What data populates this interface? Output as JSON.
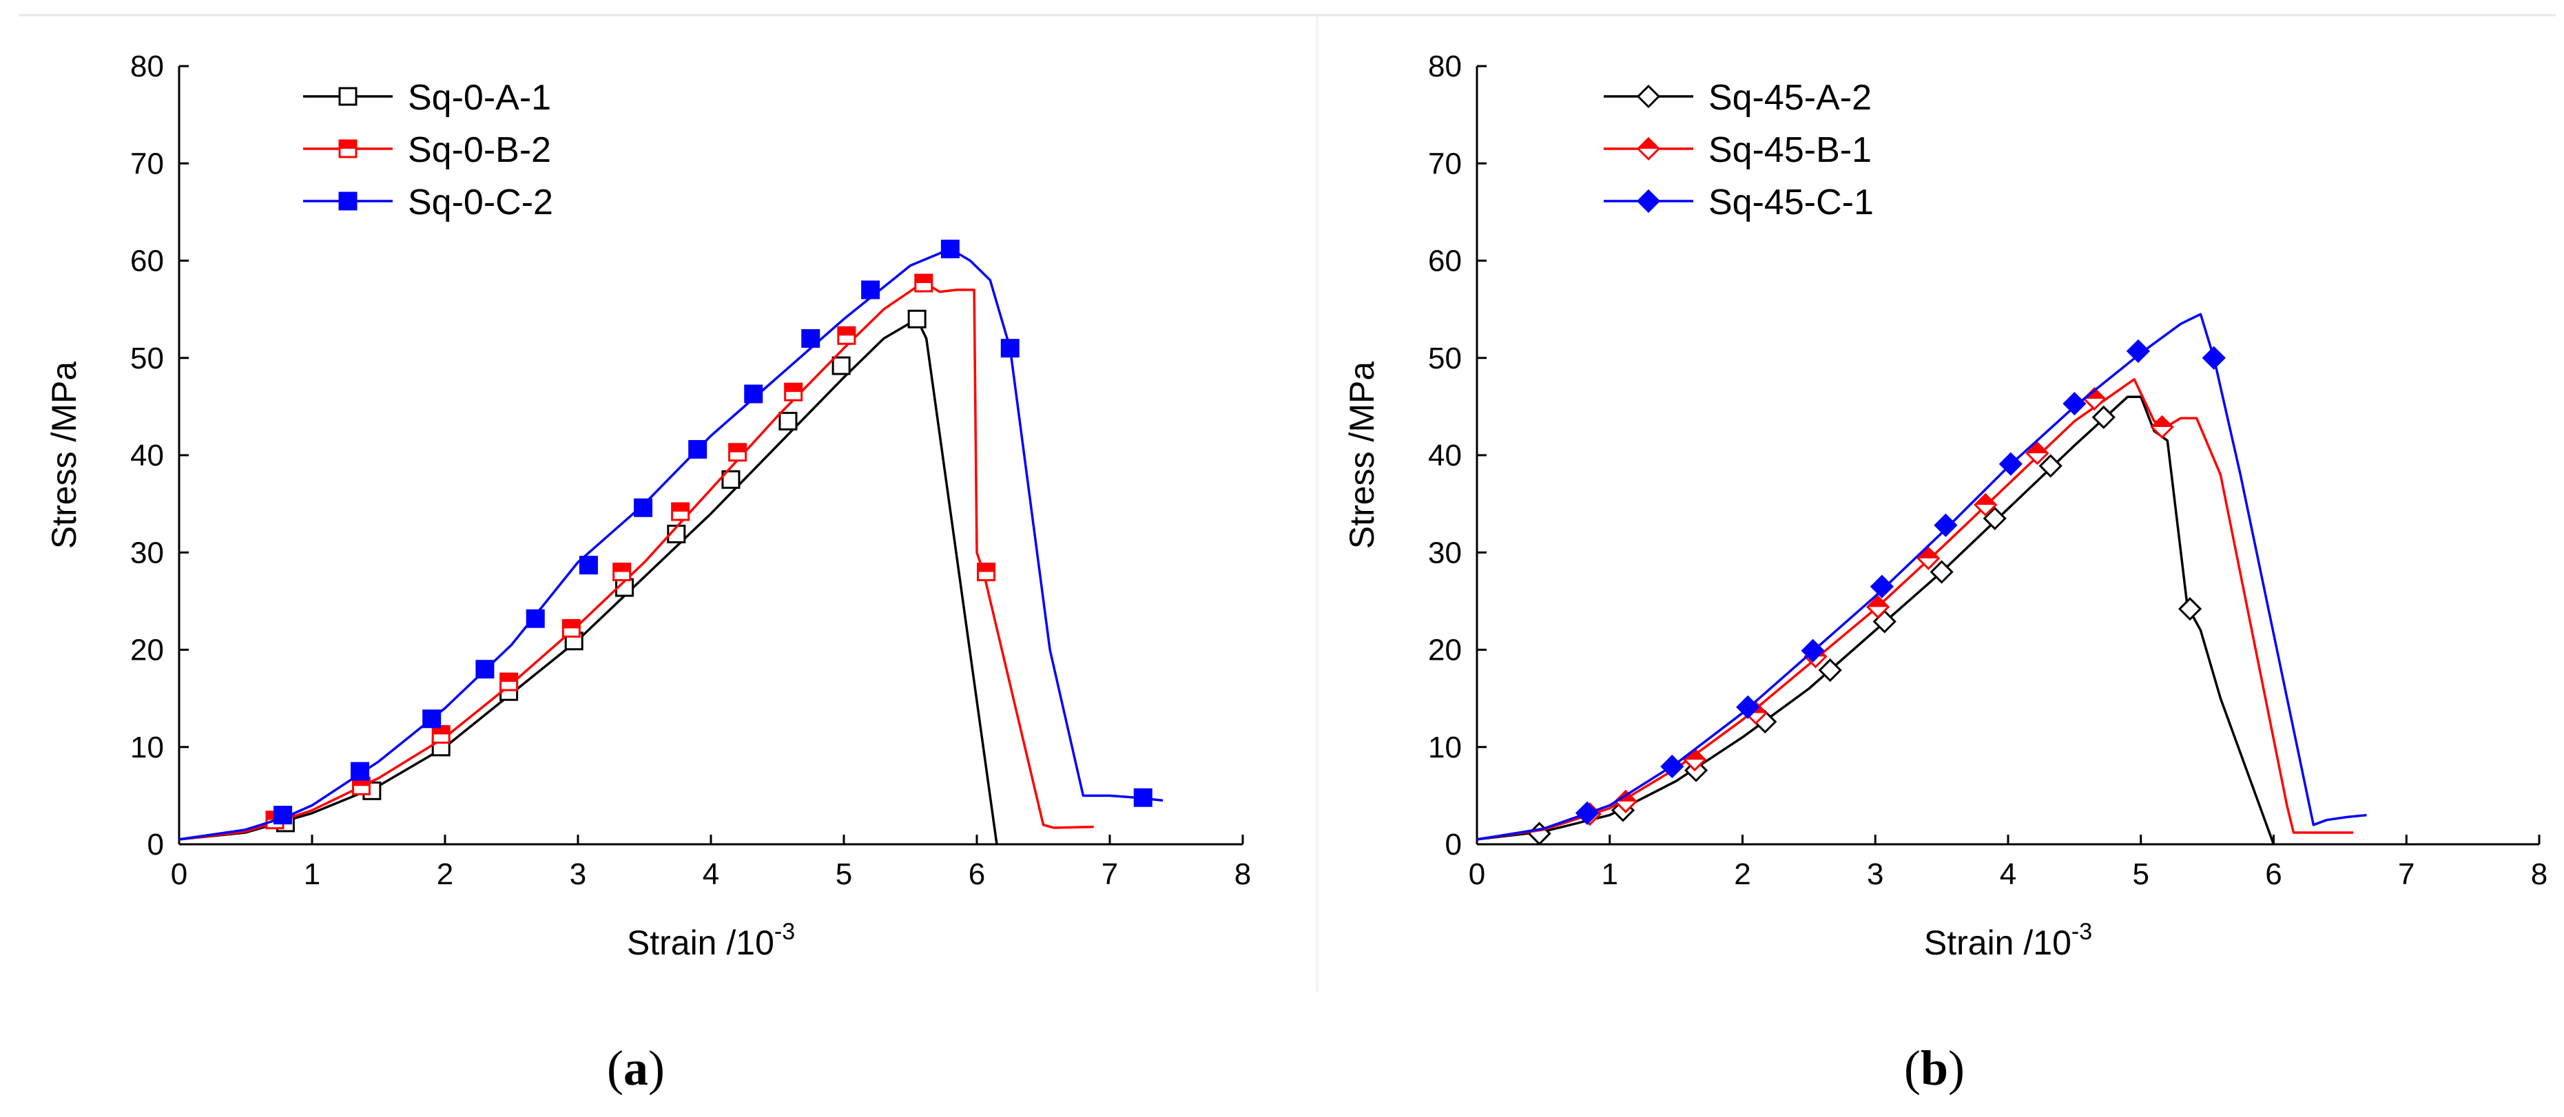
{
  "chart_data": [
    {
      "type": "line",
      "panel_label": "(a)",
      "panel_letter": "a",
      "xlabel_base": "Strain /10",
      "xlabel_exp": "-3",
      "ylabel": "Stress /MPa",
      "xlim": [
        0,
        8
      ],
      "ylim": [
        0,
        80
      ],
      "xticks": [
        0,
        1,
        2,
        3,
        4,
        5,
        6,
        7,
        8
      ],
      "yticks": [
        0,
        10,
        20,
        30,
        40,
        50,
        60,
        70,
        80
      ],
      "legend_position": "top-left",
      "series": [
        {
          "name": "Sq-0-A-1",
          "color": "#000000",
          "marker": "square",
          "marker_fill": "open",
          "points": [
            [
              0,
              0.5
            ],
            [
              0.5,
              1.2
            ],
            [
              1.0,
              3.2
            ],
            [
              1.5,
              6.0
            ],
            [
              2.0,
              10.0
            ],
            [
              2.5,
              15.5
            ],
            [
              3.0,
              21.0
            ],
            [
              3.5,
              27.5
            ],
            [
              4.0,
              34.0
            ],
            [
              4.5,
              41.0
            ],
            [
              5.0,
              48.0
            ],
            [
              5.3,
              52.0
            ],
            [
              5.55,
              54.0
            ],
            [
              5.62,
              52.0
            ],
            [
              6.15,
              0.0
            ]
          ],
          "markers": [
            [
              0.8,
              2.2
            ],
            [
              1.45,
              5.5
            ],
            [
              1.97,
              10.0
            ],
            [
              2.48,
              15.7
            ],
            [
              2.97,
              20.9
            ],
            [
              3.35,
              26.4
            ],
            [
              3.74,
              31.9
            ],
            [
              4.15,
              37.5
            ],
            [
              4.58,
              43.5
            ],
            [
              4.98,
              49.2
            ],
            [
              5.55,
              54.0
            ]
          ]
        },
        {
          "name": "Sq-0-B-2",
          "color": "#ff0000",
          "marker": "square",
          "marker_fill": "half",
          "points": [
            [
              0,
              0.5
            ],
            [
              0.5,
              1.3
            ],
            [
              0.8,
              2.6
            ],
            [
              1.0,
              3.5
            ],
            [
              1.5,
              6.8
            ],
            [
              2.0,
              11.0
            ],
            [
              2.5,
              16.5
            ],
            [
              3.0,
              22.5
            ],
            [
              3.5,
              29.0
            ],
            [
              4.0,
              36.5
            ],
            [
              4.5,
              44.0
            ],
            [
              5.0,
              51.0
            ],
            [
              5.3,
              55.0
            ],
            [
              5.6,
              57.8
            ],
            [
              5.72,
              56.8
            ],
            [
              5.85,
              57.0
            ],
            [
              5.98,
              57.0
            ],
            [
              6.0,
              30.0
            ],
            [
              6.05,
              28.0
            ],
            [
              6.5,
              2.0
            ],
            [
              6.58,
              1.7
            ],
            [
              6.88,
              1.8
            ]
          ],
          "markers": [
            [
              0.72,
              2.5
            ],
            [
              1.37,
              6.0
            ],
            [
              1.97,
              11.3
            ],
            [
              2.48,
              16.7
            ],
            [
              2.95,
              22.2
            ],
            [
              3.33,
              28.0
            ],
            [
              3.77,
              34.2
            ],
            [
              4.2,
              40.3
            ],
            [
              4.62,
              46.5
            ],
            [
              5.02,
              52.3
            ],
            [
              5.6,
              57.7
            ],
            [
              6.07,
              28.0
            ]
          ]
        },
        {
          "name": "Sq-0-C-2",
          "color": "#0000ff",
          "marker": "square",
          "marker_fill": "filled",
          "points": [
            [
              0,
              0.5
            ],
            [
              0.5,
              1.5
            ],
            [
              0.8,
              2.8
            ],
            [
              1.0,
              4.0
            ],
            [
              1.5,
              8.5
            ],
            [
              2.0,
              14.0
            ],
            [
              2.5,
              20.5
            ],
            [
              3.0,
              29.0
            ],
            [
              3.5,
              35.0
            ],
            [
              4.0,
              42.0
            ],
            [
              4.5,
              48.0
            ],
            [
              5.0,
              54.0
            ],
            [
              5.5,
              59.5
            ],
            [
              5.8,
              61.2
            ],
            [
              5.95,
              60.0
            ],
            [
              6.1,
              58.0
            ],
            [
              6.25,
              51.0
            ],
            [
              6.55,
              20.0
            ],
            [
              6.8,
              5.0
            ],
            [
              7.0,
              5.0
            ],
            [
              7.2,
              4.8
            ],
            [
              7.4,
              4.5
            ]
          ],
          "markers": [
            [
              0.78,
              3.0
            ],
            [
              1.36,
              7.5
            ],
            [
              1.9,
              12.9
            ],
            [
              2.3,
              18.0
            ],
            [
              2.68,
              23.2
            ],
            [
              3.08,
              28.7
            ],
            [
              3.49,
              34.6
            ],
            [
              3.9,
              40.6
            ],
            [
              4.32,
              46.3
            ],
            [
              4.75,
              52.0
            ],
            [
              5.2,
              57.0
            ],
            [
              5.8,
              61.2
            ],
            [
              6.25,
              51.0
            ],
            [
              7.25,
              4.8
            ]
          ]
        }
      ],
      "legend": [
        "Sq-0-A-1",
        "Sq-0-B-2",
        "Sq-0-C-2"
      ]
    },
    {
      "type": "line",
      "panel_label": "(b)",
      "panel_letter": "b",
      "xlabel_base": "Strain /10",
      "xlabel_exp": "-3",
      "ylabel": "Stress /MPa",
      "xlim": [
        0,
        8
      ],
      "ylim": [
        0,
        80
      ],
      "xticks": [
        0,
        1,
        2,
        3,
        4,
        5,
        6,
        7,
        8
      ],
      "yticks": [
        0,
        10,
        20,
        30,
        40,
        50,
        60,
        70,
        80
      ],
      "legend_position": "top-left",
      "series": [
        {
          "name": "Sq-45-A-2",
          "color": "#000000",
          "marker": "diamond",
          "marker_fill": "open",
          "points": [
            [
              0,
              0.5
            ],
            [
              0.5,
              1.3
            ],
            [
              1.0,
              3.0
            ],
            [
              1.5,
              6.5
            ],
            [
              2.0,
              11.0
            ],
            [
              2.5,
              16.0
            ],
            [
              3.0,
              22.0
            ],
            [
              3.5,
              28.0
            ],
            [
              4.0,
              34.5
            ],
            [
              4.5,
              41.0
            ],
            [
              4.9,
              46.0
            ],
            [
              5.0,
              46.0
            ],
            [
              5.1,
              42.5
            ],
            [
              5.2,
              41.5
            ],
            [
              5.35,
              24.5
            ],
            [
              5.45,
              22.0
            ],
            [
              5.6,
              15.0
            ],
            [
              6.0,
              0.0
            ]
          ],
          "markers": [
            [
              0.47,
              1.1
            ],
            [
              1.1,
              3.5
            ],
            [
              1.65,
              7.6
            ],
            [
              2.17,
              12.6
            ],
            [
              2.66,
              17.9
            ],
            [
              3.07,
              22.9
            ],
            [
              3.5,
              28.0
            ],
            [
              3.9,
              33.5
            ],
            [
              4.32,
              38.9
            ],
            [
              4.72,
              43.9
            ],
            [
              5.37,
              24.2
            ]
          ]
        },
        {
          "name": "Sq-45-B-1",
          "color": "#ff0000",
          "marker": "diamond",
          "marker_fill": "half",
          "points": [
            [
              0,
              0.5
            ],
            [
              0.5,
              1.5
            ],
            [
              1.0,
              3.7
            ],
            [
              1.5,
              7.8
            ],
            [
              2.0,
              12.8
            ],
            [
              2.5,
              18.5
            ],
            [
              3.0,
              24.2
            ],
            [
              3.5,
              30.5
            ],
            [
              4.0,
              37.0
            ],
            [
              4.5,
              43.5
            ],
            [
              4.95,
              47.8
            ],
            [
              5.1,
              43.5
            ],
            [
              5.2,
              43.0
            ],
            [
              5.3,
              43.8
            ],
            [
              5.42,
              43.8
            ],
            [
              5.6,
              38.0
            ],
            [
              6.1,
              4.0
            ],
            [
              6.15,
              1.2
            ],
            [
              6.6,
              1.2
            ]
          ],
          "markers": [
            [
              0.85,
              3.1
            ],
            [
              1.12,
              4.4
            ],
            [
              1.64,
              8.7
            ],
            [
              2.1,
              13.5
            ],
            [
              2.55,
              19.3
            ],
            [
              3.02,
              24.4
            ],
            [
              3.4,
              29.4
            ],
            [
              3.83,
              34.9
            ],
            [
              4.22,
              40.2
            ],
            [
              4.65,
              45.8
            ],
            [
              5.16,
              42.9
            ]
          ]
        },
        {
          "name": "Sq-45-C-1",
          "color": "#0000ff",
          "marker": "diamond",
          "marker_fill": "filled",
          "points": [
            [
              0,
              0.5
            ],
            [
              0.5,
              1.6
            ],
            [
              1.0,
              4.0
            ],
            [
              1.5,
              8.3
            ],
            [
              2.0,
              13.5
            ],
            [
              2.5,
              19.5
            ],
            [
              3.0,
              25.5
            ],
            [
              3.5,
              32.0
            ],
            [
              4.0,
              38.8
            ],
            [
              4.5,
              45.0
            ],
            [
              5.0,
              50.5
            ],
            [
              5.3,
              53.5
            ],
            [
              5.45,
              54.5
            ],
            [
              5.55,
              50.0
            ],
            [
              5.75,
              38.0
            ],
            [
              6.3,
              2.0
            ],
            [
              6.4,
              2.5
            ],
            [
              6.55,
              2.8
            ],
            [
              6.7,
              3.0
            ]
          ],
          "markers": [
            [
              0.83,
              3.2
            ],
            [
              1.47,
              8.0
            ],
            [
              2.04,
              14.1
            ],
            [
              2.53,
              19.9
            ],
            [
              3.05,
              26.5
            ],
            [
              3.53,
              32.8
            ],
            [
              4.02,
              39.1
            ],
            [
              4.5,
              45.3
            ],
            [
              4.98,
              50.7
            ],
            [
              5.55,
              50.0
            ]
          ]
        }
      ],
      "legend": [
        "Sq-45-A-2",
        "Sq-45-B-1",
        "Sq-45-C-1"
      ]
    }
  ]
}
